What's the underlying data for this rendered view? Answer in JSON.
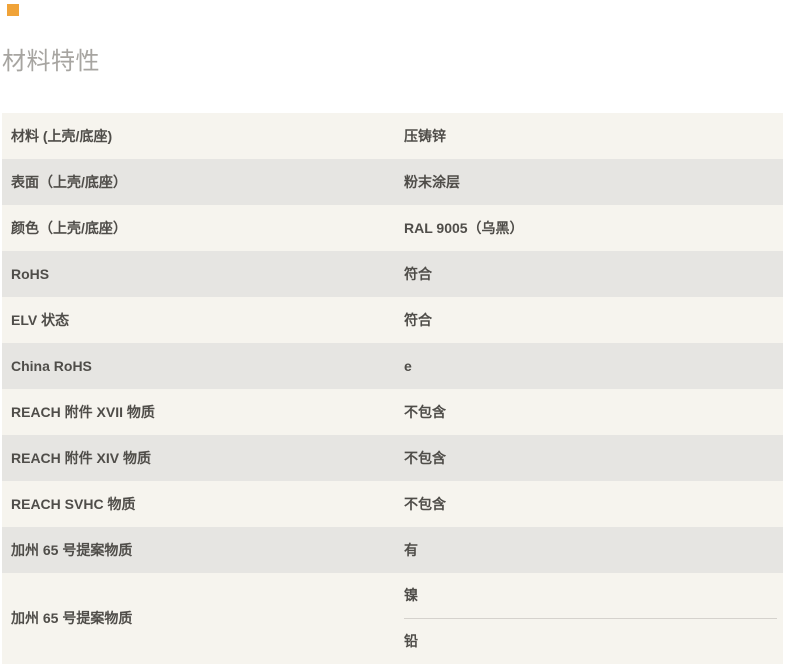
{
  "header": {
    "title": "材料特性"
  },
  "accent_square": {
    "color": "#f0a338"
  },
  "colors": {
    "row_odd": "#f6f4ee",
    "row_even": "#e6e5e2",
    "text": "#4f4d49",
    "title": "#a7a5a1",
    "separator": "#d5d2cd",
    "background": "#ffffff"
  },
  "table": {
    "rows": [
      {
        "label": "材料 (上壳/底座)",
        "values": [
          "压铸锌"
        ]
      },
      {
        "label": "表面（上壳/底座）",
        "values": [
          "粉末涂层"
        ]
      },
      {
        "label": "颜色（上壳/底座）",
        "values": [
          "RAL 9005（乌黑）"
        ]
      },
      {
        "label": "RoHS",
        "values": [
          "符合"
        ]
      },
      {
        "label": "ELV 状态",
        "values": [
          "符合"
        ]
      },
      {
        "label": "China RoHS",
        "values": [
          "e"
        ]
      },
      {
        "label": "REACH 附件 XVII 物质",
        "values": [
          "不包含"
        ]
      },
      {
        "label": "REACH 附件 XIV 物质",
        "values": [
          "不包含"
        ]
      },
      {
        "label": "REACH SVHC 物质",
        "values": [
          "不包含"
        ]
      },
      {
        "label": "加州 65 号提案物质",
        "values": [
          "有"
        ]
      },
      {
        "label": "加州 65 号提案物质",
        "values": [
          "镍",
          "铅"
        ]
      }
    ]
  }
}
